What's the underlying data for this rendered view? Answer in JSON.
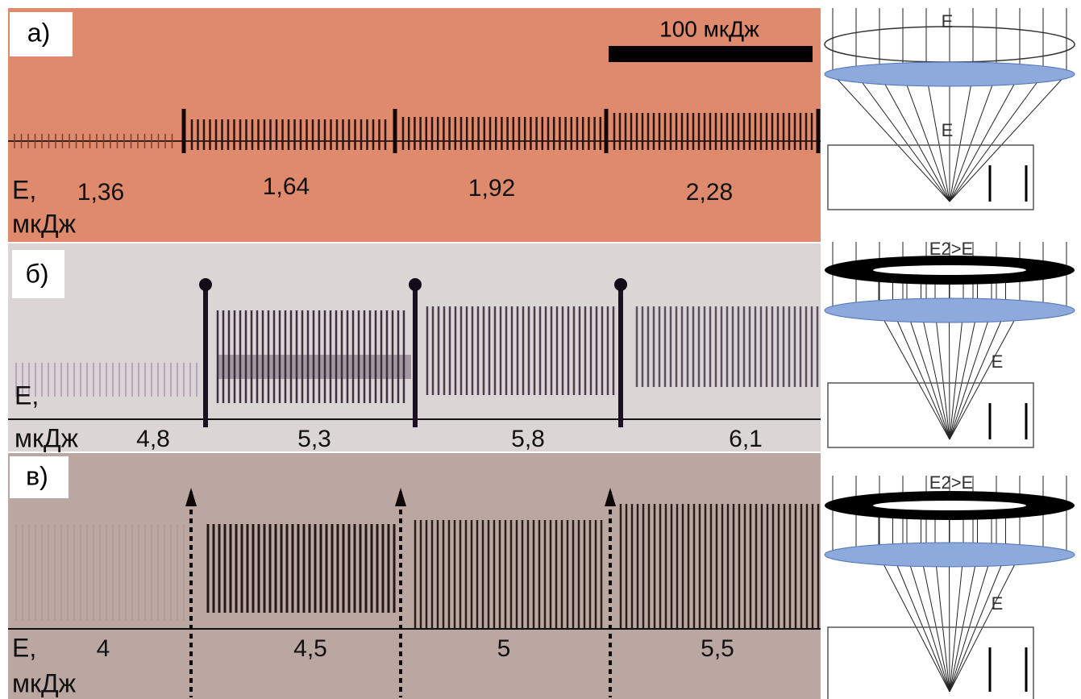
{
  "panels": [
    {
      "label": "а)",
      "e_label": "E,",
      "unit": "мкДж",
      "energies": [
        "1,36",
        "1,64",
        "1,92",
        "2,28"
      ],
      "scale_bar": "100 мкДж"
    },
    {
      "label": "б)",
      "e_label": "E,",
      "unit": "мкДж",
      "energies": [
        "4,8",
        "5,3",
        "5,8",
        "6,1"
      ]
    },
    {
      "label": "в)",
      "e_label": "E,",
      "unit": "мкДж",
      "energies": [
        "4",
        "4,5",
        "5",
        "5,5"
      ]
    }
  ],
  "diagrams": [
    {
      "top_label": "E",
      "focus_label": "E"
    },
    {
      "top_label": "E2>E",
      "focus_label": "E"
    },
    {
      "top_label": "E2>E",
      "focus_label": "E"
    }
  ]
}
